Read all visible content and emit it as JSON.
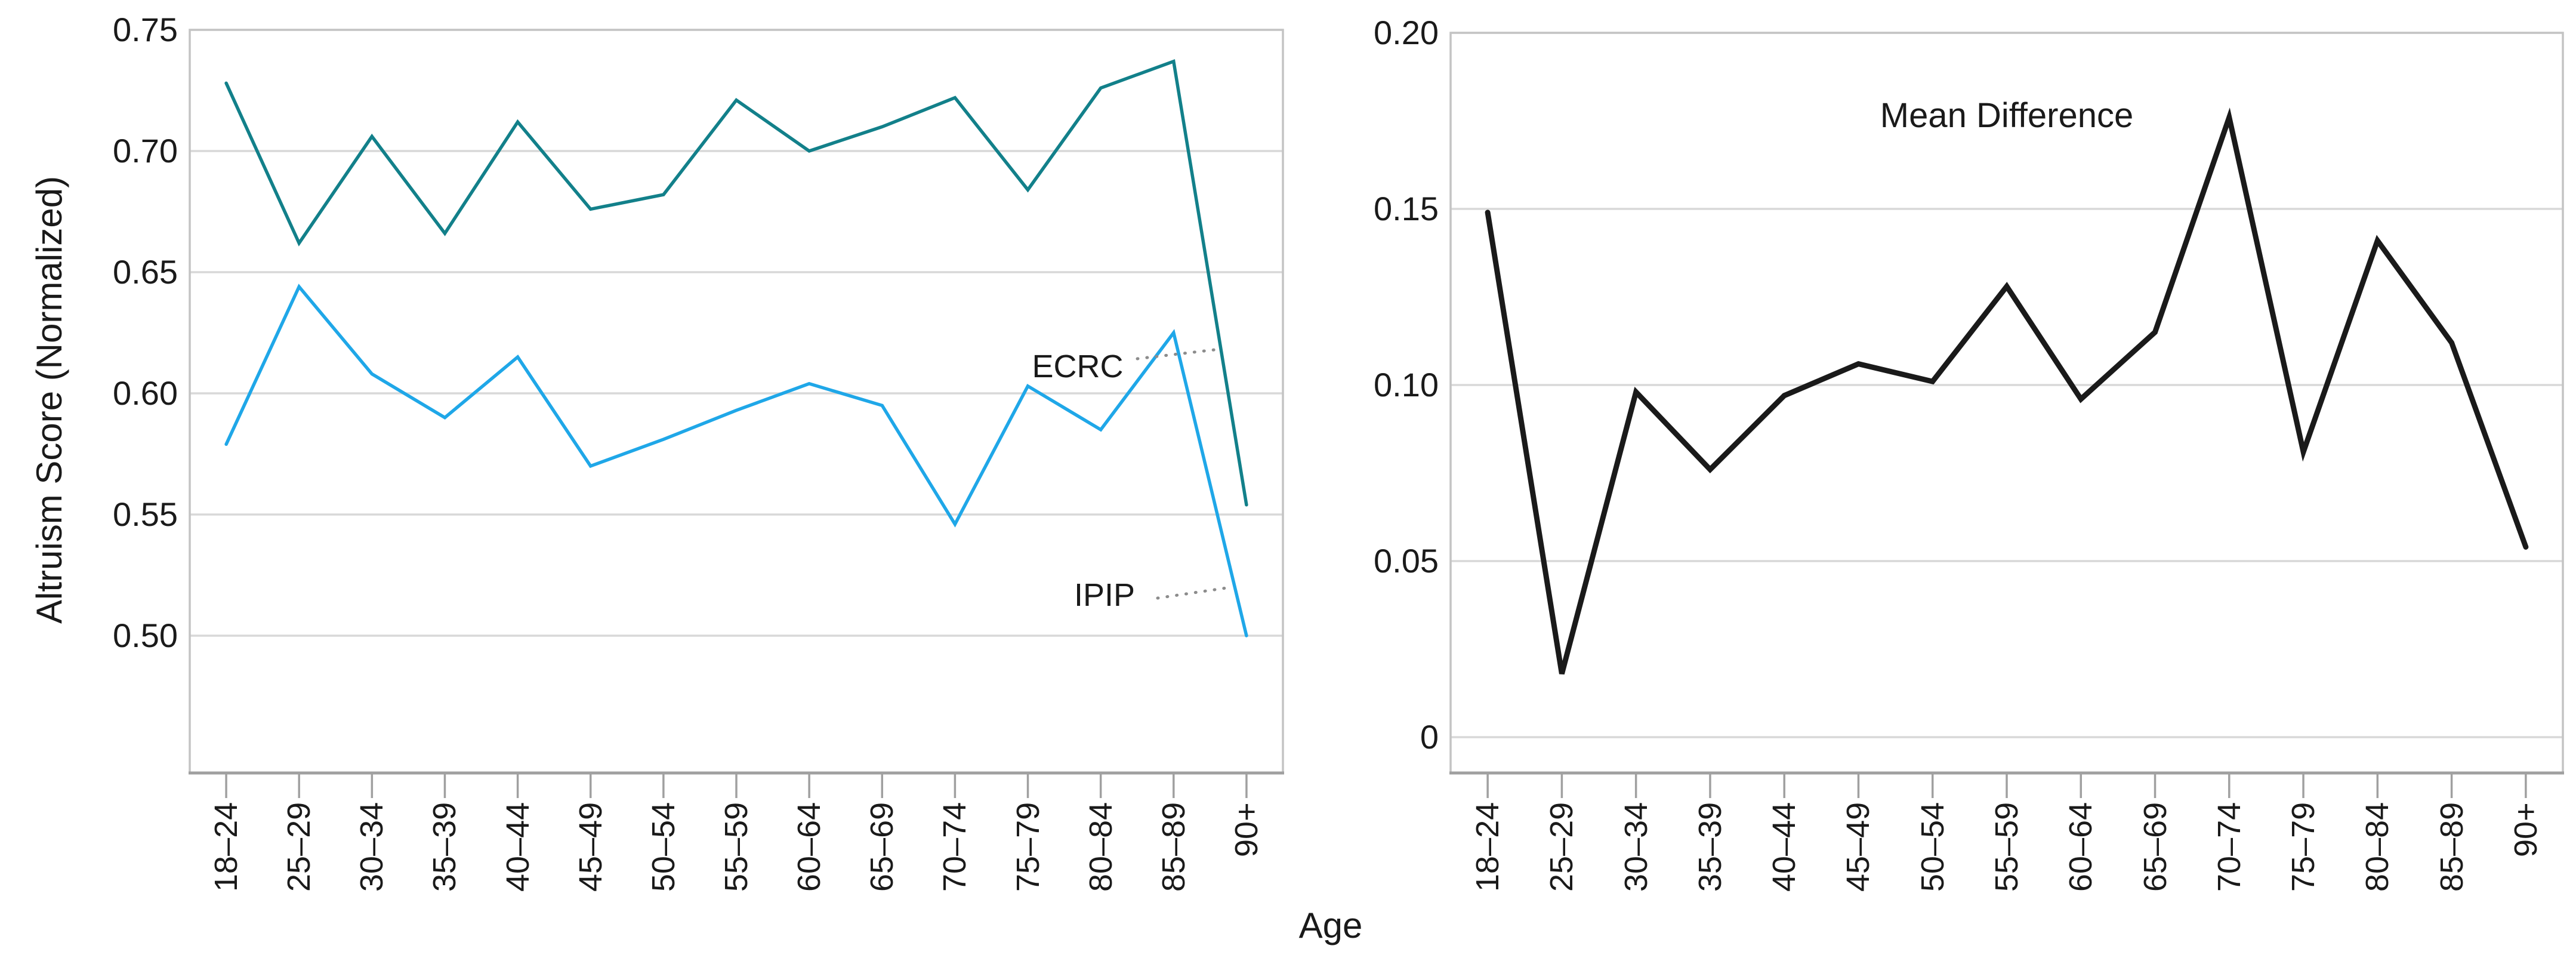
{
  "figure": {
    "xlabel": "Age",
    "background": "#ffffff"
  },
  "annotations": {
    "ecrc": {
      "text": "ECRC"
    },
    "ipip": {
      "text": "IPIP"
    },
    "mean_difference": {
      "text": "Mean Difference"
    }
  },
  "colors": {
    "ecrc_line": "#12808A",
    "ipip_line": "#1FA7E8",
    "difference_line": "#1A1A1A"
  },
  "chart_data": [
    {
      "id": "altruism-by-age",
      "type": "line",
      "title": "",
      "xlabel": "Age",
      "ylabel": "Altruism Score (Normalized)",
      "ylim": [
        0.5,
        0.75
      ],
      "ytick_step": 0.05,
      "yticks": [
        "0.75",
        "0.70",
        "0.65",
        "0.60",
        "0.55",
        "0.50"
      ],
      "grid": true,
      "legend_position": "inline-annotations",
      "categories": [
        "18–24",
        "25–29",
        "30–34",
        "35–39",
        "40–44",
        "45–49",
        "50–54",
        "55–59",
        "60–64",
        "65–69",
        "70–74",
        "75–79",
        "80–84",
        "85–89",
        "90+"
      ],
      "series": [
        {
          "name": "ECRC",
          "color": "#12808A",
          "values": [
            0.728,
            0.662,
            0.706,
            0.666,
            0.712,
            0.676,
            0.682,
            0.721,
            0.7,
            0.71,
            0.722,
            0.684,
            0.726,
            0.737,
            0.554
          ]
        },
        {
          "name": "IPIP",
          "color": "#1FA7E8",
          "values": [
            0.579,
            0.644,
            0.608,
            0.59,
            0.615,
            0.57,
            0.581,
            0.593,
            0.604,
            0.595,
            0.546,
            0.603,
            0.585,
            0.625,
            0.5
          ]
        }
      ]
    },
    {
      "id": "mean-difference-by-age",
      "type": "line",
      "title": "Mean Difference",
      "xlabel": "Age",
      "ylabel": "",
      "ylim": [
        0,
        0.2
      ],
      "ytick_step": 0.05,
      "yticks": [
        "0.20",
        "0.15",
        "0.10",
        "0.05",
        "0"
      ],
      "grid": true,
      "legend_position": "title-annotation",
      "categories": [
        "18–24",
        "25–29",
        "30–34",
        "35–39",
        "40–44",
        "45–49",
        "50–54",
        "55–59",
        "60–64",
        "65–69",
        "70–74",
        "75–79",
        "80–84",
        "85–89",
        "90+"
      ],
      "series": [
        {
          "name": "Mean Difference",
          "color": "#1A1A1A",
          "values": [
            0.149,
            0.018,
            0.098,
            0.076,
            0.097,
            0.106,
            0.101,
            0.128,
            0.096,
            0.115,
            0.176,
            0.081,
            0.141,
            0.112,
            0.054
          ]
        }
      ]
    }
  ]
}
